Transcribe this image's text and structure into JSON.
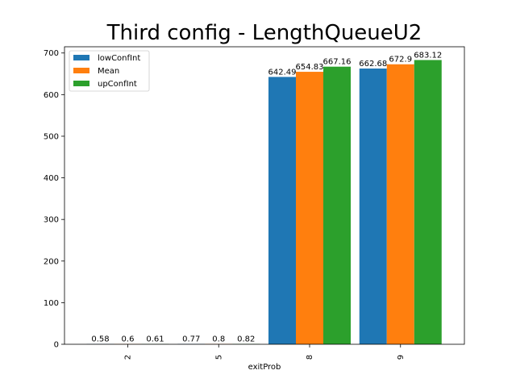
{
  "chart_data": {
    "type": "bar",
    "title": "Third config - LengthQueueU2",
    "xlabel": "exitProb",
    "ylabel": "",
    "categories": [
      "2",
      "5",
      "8",
      "9"
    ],
    "series": [
      {
        "name": "lowConfInt",
        "color": "#1f77b4",
        "values": [
          0.58,
          0.77,
          642.49,
          662.68
        ]
      },
      {
        "name": "Mean",
        "color": "#ff7f0e",
        "values": [
          0.6,
          0.8,
          654.83,
          672.9
        ]
      },
      {
        "name": "upConfInt",
        "color": "#2ca02c",
        "values": [
          0.61,
          0.82,
          667.16,
          683.12
        ]
      }
    ],
    "ylim": [
      0,
      715
    ],
    "yticks": [
      0,
      100,
      200,
      300,
      400,
      500,
      600,
      700
    ],
    "legend_position": "top-left",
    "grid": false
  }
}
